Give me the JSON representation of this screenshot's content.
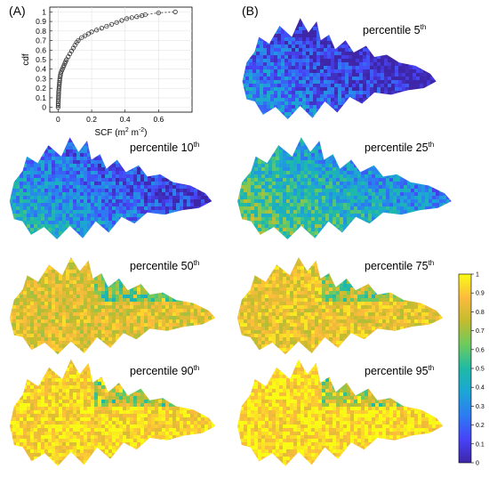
{
  "panels": {
    "a_letter": "(A)",
    "b_letter": "(B)"
  },
  "colors": {
    "colormap": [
      "#3e26a8",
      "#4743f8",
      "#2d7bf2",
      "#1ca6d6",
      "#1ebaa6",
      "#6ccb5f",
      "#c2bc2f",
      "#fcbb3d",
      "#f9fb15"
    ],
    "marker": "#333333"
  },
  "chart_data": [
    {
      "type": "scatter",
      "panel": "(A)",
      "title": "",
      "xlabel": "SCF (m",
      "xlabel_sup": "2",
      "xlabel_mid": " m",
      "xlabel_sup2": "-2",
      "xlabel_end": ")",
      "ylabel": "cdf",
      "xlim": [
        -0.05,
        0.8
      ],
      "ylim": [
        -0.05,
        1.05
      ],
      "xticks": [
        0,
        0.2,
        0.4,
        0.6
      ],
      "yticks": [
        0,
        0.1,
        0.2,
        0.3,
        0.4,
        0.5,
        0.6,
        0.7,
        0.8,
        0.9,
        1
      ],
      "xtick_labels": [
        "0",
        "0.2",
        "0.4",
        "0.6"
      ],
      "ytick_labels": [
        "0",
        "0.1",
        "0.2",
        "0.3",
        "0.4",
        "0.5",
        "0.6",
        "0.7",
        "0.8",
        "0.9",
        "1"
      ],
      "grid": true,
      "marker": "circle",
      "line": "dashed",
      "points": [
        [
          0.0,
          0.0
        ],
        [
          0.0,
          0.02
        ],
        [
          0.0,
          0.04
        ],
        [
          0.001,
          0.06
        ],
        [
          0.001,
          0.08
        ],
        [
          0.002,
          0.1
        ],
        [
          0.002,
          0.12
        ],
        [
          0.003,
          0.14
        ],
        [
          0.003,
          0.16
        ],
        [
          0.004,
          0.18
        ],
        [
          0.005,
          0.2
        ],
        [
          0.006,
          0.22
        ],
        [
          0.007,
          0.24
        ],
        [
          0.008,
          0.26
        ],
        [
          0.009,
          0.28
        ],
        [
          0.01,
          0.3
        ],
        [
          0.012,
          0.32
        ],
        [
          0.014,
          0.34
        ],
        [
          0.016,
          0.36
        ],
        [
          0.02,
          0.38
        ],
        [
          0.025,
          0.4
        ],
        [
          0.03,
          0.42
        ],
        [
          0.035,
          0.44
        ],
        [
          0.04,
          0.46
        ],
        [
          0.045,
          0.48
        ],
        [
          0.05,
          0.5
        ],
        [
          0.06,
          0.53
        ],
        [
          0.07,
          0.56
        ],
        [
          0.08,
          0.59
        ],
        [
          0.09,
          0.62
        ],
        [
          0.1,
          0.65
        ],
        [
          0.11,
          0.68
        ],
        [
          0.12,
          0.7
        ],
        [
          0.14,
          0.73
        ],
        [
          0.16,
          0.75
        ],
        [
          0.18,
          0.77
        ],
        [
          0.2,
          0.79
        ],
        [
          0.23,
          0.81
        ],
        [
          0.26,
          0.83
        ],
        [
          0.29,
          0.85
        ],
        [
          0.32,
          0.87
        ],
        [
          0.35,
          0.89
        ],
        [
          0.38,
          0.91
        ],
        [
          0.41,
          0.93
        ],
        [
          0.44,
          0.94
        ],
        [
          0.47,
          0.95
        ],
        [
          0.5,
          0.96
        ],
        [
          0.52,
          0.97
        ],
        [
          0.6,
          0.99
        ],
        [
          0.7,
          1.0
        ]
      ]
    },
    {
      "type": "heatmap",
      "panel": "(B)",
      "colorbar": {
        "min": 0,
        "max": 1,
        "ticks": [
          0,
          0.1,
          0.2,
          0.3,
          0.4,
          0.5,
          0.6,
          0.7,
          0.8,
          0.9,
          1
        ],
        "tick_labels": [
          "0",
          "0.1",
          "0.2",
          "0.3",
          "0.4",
          "0.5",
          "0.6",
          "0.7",
          "0.8",
          "0.9",
          "1"
        ]
      },
      "maps": [
        {
          "label": "percentile 5",
          "sup": "th",
          "level": 0.15
        },
        {
          "label": "percentile 10",
          "sup": "th",
          "level": 0.25
        },
        {
          "label": "percentile 25",
          "sup": "th",
          "level": 0.45
        },
        {
          "label": "percentile 50",
          "sup": "th",
          "level": 0.82
        },
        {
          "label": "percentile 75",
          "sup": "th",
          "level": 0.85
        },
        {
          "label": "percentile 90",
          "sup": "th",
          "level": 0.92
        },
        {
          "label": "percentile 95",
          "sup": "th",
          "level": 0.94
        }
      ]
    }
  ]
}
